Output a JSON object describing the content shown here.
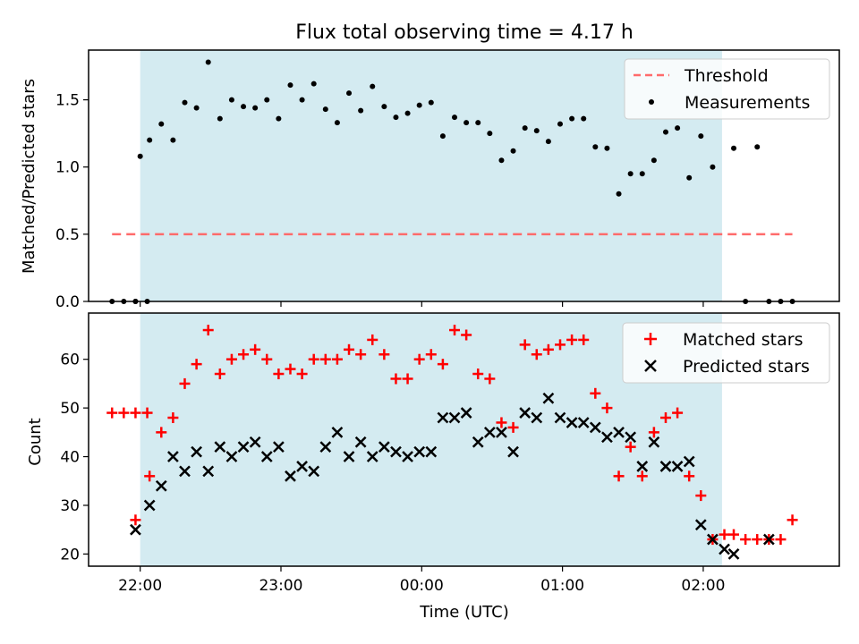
{
  "colors": {
    "shade": "#d4ebf1",
    "threshold": "#ff6b6b",
    "measure": "#000000",
    "matched": "#ff0000",
    "predicted": "#000000"
  },
  "chart_data": [
    {
      "type": "scatter",
      "title": "Flux total observing time = 4.17 h",
      "xlabel": "",
      "ylabel": "Matched/Predicted stars",
      "xlim": [
        "21:38",
        "02:58"
      ],
      "ylim": [
        0,
        1.87
      ],
      "yticks": [
        "0.0",
        "0.5",
        "1.0",
        "1.5"
      ],
      "shaded_region": [
        "22:00",
        "02:08"
      ],
      "legend": "top-right",
      "threshold": {
        "name": "Threshold",
        "value": 0.5,
        "x_range": [
          "21:48",
          "02:38"
        ]
      },
      "series": [
        {
          "name": "Measurements",
          "x": [
            "21:48",
            "21:53",
            "21:58",
            "22:03",
            "21:58",
            "22:00",
            "22:04",
            "22:09",
            "22:14",
            "22:19",
            "22:24",
            "22:29",
            "22:34",
            "22:39",
            "22:44",
            "22:49",
            "22:54",
            "22:59",
            "23:04",
            "23:09",
            "23:14",
            "23:19",
            "23:24",
            "23:29",
            "23:34",
            "23:39",
            "23:44",
            "23:49",
            "23:54",
            "23:59",
            "00:04",
            "00:09",
            "00:14",
            "00:19",
            "00:24",
            "00:29",
            "00:34",
            "00:39",
            "00:44",
            "00:49",
            "00:54",
            "00:59",
            "01:04",
            "01:09",
            "01:14",
            "01:19",
            "01:24",
            "01:29",
            "01:34",
            "01:39",
            "01:44",
            "01:49",
            "01:54",
            "01:59",
            "02:04",
            "02:13",
            "02:18",
            "02:23",
            "02:28",
            "02:33",
            "02:38"
          ],
          "y": [
            0,
            0,
            0,
            0,
            0,
            1.08,
            1.2,
            1.32,
            1.2,
            1.48,
            1.44,
            1.78,
            1.36,
            1.5,
            1.45,
            1.44,
            1.5,
            1.36,
            1.61,
            1.5,
            1.62,
            1.43,
            1.33,
            1.55,
            1.42,
            1.6,
            1.45,
            1.37,
            1.4,
            1.46,
            1.48,
            1.23,
            1.37,
            1.33,
            1.33,
            1.25,
            1.05,
            1.12,
            1.29,
            1.27,
            1.19,
            1.32,
            1.36,
            1.36,
            1.15,
            1.14,
            0.8,
            0.95,
            0.95,
            1.05,
            1.26,
            1.29,
            0.92,
            1.23,
            1.0,
            1.14,
            0,
            1.15,
            0,
            0,
            0
          ]
        }
      ]
    },
    {
      "type": "scatter",
      "title": "",
      "xlabel": "Time (UTC)",
      "ylabel": "Count",
      "xlim": [
        "21:38",
        "02:58"
      ],
      "ylim": [
        17.5,
        69.5
      ],
      "yticks": [
        "20",
        "30",
        "40",
        "50",
        "60"
      ],
      "xticks": [
        "22:00",
        "23:00",
        "00:00",
        "01:00",
        "02:00"
      ],
      "shaded_region": [
        "22:00",
        "02:08"
      ],
      "legend": "top-right",
      "series": [
        {
          "name": "Matched stars",
          "marker": "+",
          "x": [
            "21:48",
            "21:53",
            "21:58",
            "22:03",
            "21:58",
            "22:04",
            "22:09",
            "22:14",
            "22:19",
            "22:24",
            "22:29",
            "22:34",
            "22:39",
            "22:44",
            "22:49",
            "22:54",
            "22:59",
            "23:04",
            "23:09",
            "23:14",
            "23:19",
            "23:24",
            "23:29",
            "23:34",
            "23:39",
            "23:44",
            "23:49",
            "23:54",
            "23:59",
            "00:04",
            "00:09",
            "00:14",
            "00:19",
            "00:24",
            "00:29",
            "00:34",
            "00:39",
            "00:44",
            "00:49",
            "00:54",
            "00:59",
            "01:04",
            "01:09",
            "01:14",
            "01:19",
            "01:24",
            "01:29",
            "01:34",
            "01:39",
            "01:44",
            "01:49",
            "01:54",
            "01:59",
            "02:04",
            "02:09",
            "02:13",
            "02:18",
            "02:23",
            "02:28",
            "02:33",
            "02:38"
          ],
          "y": [
            49,
            49,
            49,
            49,
            27,
            36,
            45,
            48,
            55,
            59,
            66,
            57,
            60,
            61,
            62,
            60,
            57,
            58,
            57,
            60,
            60,
            60,
            62,
            61,
            64,
            61,
            56,
            56,
            60,
            61,
            59,
            66,
            65,
            57,
            56,
            47,
            46,
            63,
            61,
            62,
            63,
            64,
            64,
            53,
            50,
            36,
            42,
            36,
            45,
            48,
            49,
            36,
            32,
            23,
            24,
            24,
            23,
            23,
            23,
            23,
            27
          ]
        },
        {
          "name": "Predicted stars",
          "marker": "x",
          "x": [
            "21:58",
            "22:04",
            "22:09",
            "22:14",
            "22:19",
            "22:24",
            "22:29",
            "22:34",
            "22:39",
            "22:44",
            "22:49",
            "22:54",
            "22:59",
            "23:04",
            "23:09",
            "23:14",
            "23:19",
            "23:24",
            "23:29",
            "23:34",
            "23:39",
            "23:44",
            "23:49",
            "23:54",
            "23:59",
            "00:04",
            "00:09",
            "00:14",
            "00:19",
            "00:24",
            "00:29",
            "00:34",
            "00:39",
            "00:44",
            "00:49",
            "00:54",
            "00:59",
            "01:04",
            "01:09",
            "01:14",
            "01:19",
            "01:24",
            "01:29",
            "01:34",
            "01:39",
            "01:44",
            "01:49",
            "01:54",
            "01:59",
            "02:04",
            "02:09",
            "02:13",
            "02:28"
          ],
          "y": [
            25,
            30,
            34,
            40,
            37,
            41,
            37,
            42,
            40,
            42,
            43,
            40,
            42,
            36,
            38,
            37,
            42,
            45,
            40,
            43,
            40,
            42,
            41,
            40,
            41,
            41,
            48,
            48,
            49,
            43,
            45,
            45,
            41,
            49,
            48,
            52,
            48,
            47,
            47,
            46,
            44,
            45,
            44,
            38,
            43,
            38,
            38,
            39,
            26,
            23,
            21,
            20,
            23
          ]
        }
      ]
    }
  ]
}
